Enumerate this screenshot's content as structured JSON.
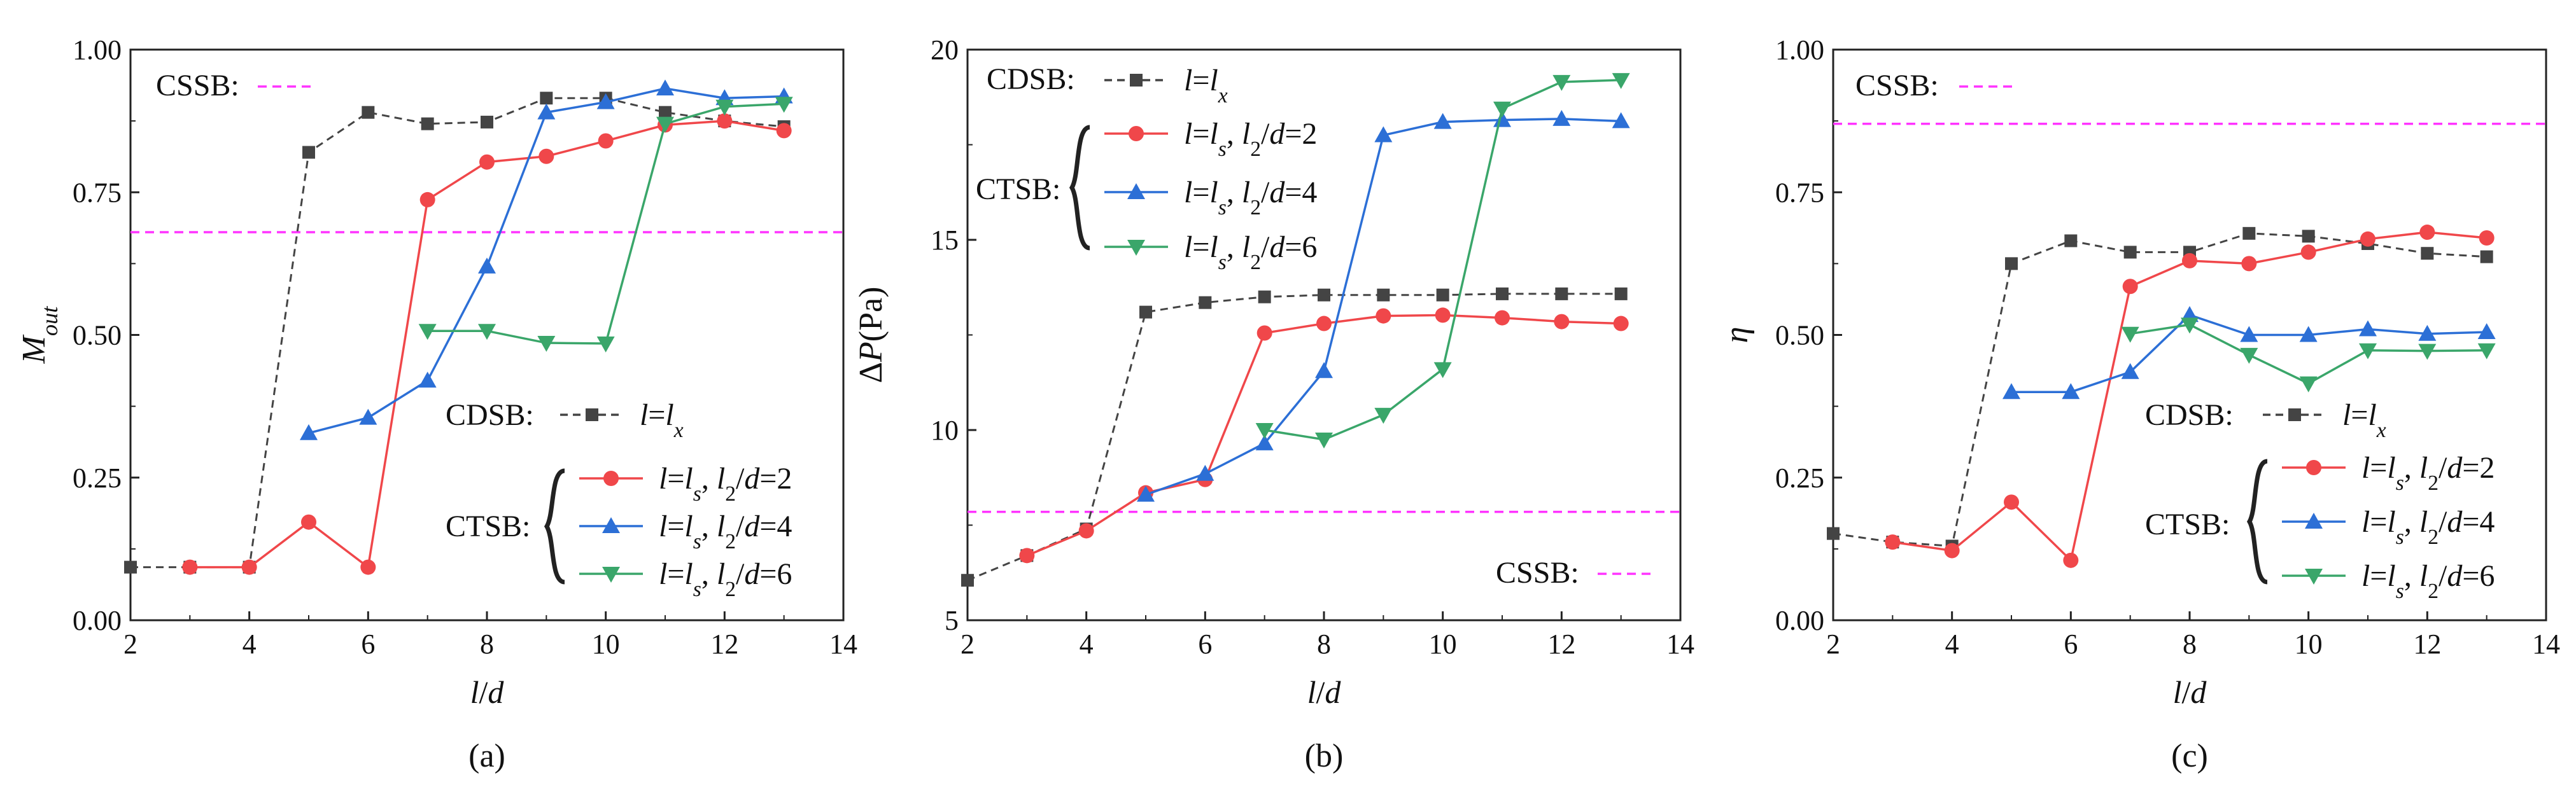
{
  "colors": {
    "cdsb": "#444444",
    "ls_2": "#f0474a",
    "ls_4": "#2c6fd6",
    "ls_6": "#3aa66a",
    "cssb": "#ff33ff",
    "axis": "#222222"
  },
  "chart_data": [
    {
      "type": "line",
      "panel_label": "(a)",
      "xlabel": "l/d",
      "ylabel": "M_out",
      "xlim": [
        2,
        14
      ],
      "ylim": [
        0,
        1
      ],
      "xticks": [
        "2",
        "4",
        "6",
        "8",
        "10",
        "12",
        "14"
      ],
      "yticks": [
        "0.00",
        "0.25",
        "0.50",
        "0.75",
        "1.00"
      ],
      "legend": {
        "cdsb_label": "CDSB:",
        "ctsb_label": "CTSB:",
        "cssb_label": "CSSB:",
        "entries": [
          {
            "id": "cdsb",
            "main": "l",
            "eq": "=",
            "sub_main": "l",
            "sub": "x",
            "tail": ""
          },
          {
            "id": "ls2",
            "main": "l",
            "eq": "=",
            "sub_main": "l",
            "sub": "s",
            "tail": ", l2/d=2"
          },
          {
            "id": "ls4",
            "main": "l",
            "eq": "=",
            "sub_main": "l",
            "sub": "s",
            "tail": ", l2/d=4"
          },
          {
            "id": "ls6",
            "main": "l",
            "eq": "=",
            "sub_main": "l",
            "sub": "s",
            "tail": ", l2/d=6"
          }
        ]
      },
      "reference_lines": [
        {
          "name": "CSSB",
          "y": 0.68
        }
      ],
      "series": [
        {
          "name": "CDSB: l=l_x",
          "color_key": "cdsb",
          "marker": "square",
          "dash": true,
          "x": [
            2,
            3,
            4,
            5,
            6,
            7,
            8,
            9,
            10,
            11,
            12,
            13
          ],
          "values": [
            0.093,
            0.093,
            0.093,
            0.82,
            0.89,
            0.87,
            0.873,
            0.915,
            0.915,
            0.89,
            0.875,
            0.865
          ]
        },
        {
          "name": "CTSB: l=l_s, l2/d=2",
          "color_key": "ls_2",
          "marker": "circle",
          "dash": false,
          "x": [
            3,
            4,
            5,
            6,
            7,
            8,
            9,
            10,
            11,
            12,
            13
          ],
          "values": [
            0.093,
            0.093,
            0.172,
            0.093,
            0.737,
            0.803,
            0.813,
            0.84,
            0.868,
            0.875,
            0.858
          ]
        },
        {
          "name": "CTSB: l=l_s, l2/d=4",
          "color_key": "ls_4",
          "marker": "triangle-up",
          "dash": false,
          "x": [
            5,
            6,
            7,
            8,
            9,
            10,
            11,
            12,
            13
          ],
          "values": [
            0.328,
            0.355,
            0.42,
            0.62,
            0.89,
            0.908,
            0.932,
            0.915,
            0.918
          ]
        },
        {
          "name": "CTSB: l=l_s, l2/d=6",
          "color_key": "ls_6",
          "marker": "triangle-down",
          "dash": false,
          "x": [
            7,
            8,
            9,
            10,
            11,
            12,
            13
          ],
          "values": [
            0.507,
            0.507,
            0.486,
            0.485,
            0.87,
            0.9,
            0.905
          ]
        }
      ]
    },
    {
      "type": "line",
      "panel_label": "(b)",
      "xlabel": "l/d",
      "ylabel": "ΔP(Pa)",
      "xlim": [
        2,
        14
      ],
      "ylim": [
        5,
        20
      ],
      "xticks": [
        "2",
        "4",
        "6",
        "8",
        "10",
        "12",
        "14"
      ],
      "yticks": [
        "5",
        "10",
        "15",
        "20"
      ],
      "legend": {
        "cdsb_label": "CDSB:",
        "ctsb_label": "CTSB:",
        "cssb_label": "CSSB:"
      },
      "reference_lines": [
        {
          "name": "CSSB",
          "y": 7.85
        }
      ],
      "series": [
        {
          "name": "CDSB: l=l_x",
          "color_key": "cdsb",
          "marker": "square",
          "dash": true,
          "x": [
            2,
            3,
            4,
            5,
            6,
            7,
            8,
            9,
            10,
            11,
            12,
            13
          ],
          "values": [
            6.05,
            6.7,
            7.4,
            13.1,
            13.35,
            13.5,
            13.55,
            13.55,
            13.55,
            13.58,
            13.58,
            13.58
          ]
        },
        {
          "name": "CTSB: l=l_s, l2/d=2",
          "color_key": "ls_2",
          "marker": "circle",
          "dash": false,
          "x": [
            3,
            4,
            5,
            6,
            7,
            8,
            9,
            10,
            11,
            12,
            13
          ],
          "values": [
            6.7,
            7.35,
            8.35,
            8.7,
            12.55,
            12.8,
            13.0,
            13.02,
            12.95,
            12.85,
            12.8
          ]
        },
        {
          "name": "CTSB: l=l_s, l2/d=4",
          "color_key": "ls_4",
          "marker": "triangle-up",
          "dash": false,
          "x": [
            5,
            6,
            7,
            8,
            9,
            10,
            11,
            12,
            13
          ],
          "values": [
            8.3,
            8.85,
            9.65,
            11.55,
            17.75,
            18.1,
            18.15,
            18.18,
            18.12
          ]
        },
        {
          "name": "CTSB: l=l_s, l2/d=6",
          "color_key": "ls_6",
          "marker": "triangle-down",
          "dash": false,
          "x": [
            7,
            8,
            9,
            10,
            11,
            12,
            13
          ],
          "values": [
            10.0,
            9.75,
            10.4,
            11.6,
            18.45,
            19.15,
            19.2
          ]
        }
      ]
    },
    {
      "type": "line",
      "panel_label": "(c)",
      "xlabel": "l/d",
      "ylabel": "η",
      "xlim": [
        2,
        14
      ],
      "ylim": [
        0,
        1
      ],
      "xticks": [
        "2",
        "4",
        "6",
        "8",
        "10",
        "12",
        "14"
      ],
      "yticks": [
        "0.00",
        "0.25",
        "0.50",
        "0.75",
        "1.00"
      ],
      "legend": {
        "cdsb_label": "CDSB:",
        "ctsb_label": "CTSB:",
        "cssb_label": "CSSB:"
      },
      "reference_lines": [
        {
          "name": "CSSB",
          "y": 0.87
        }
      ],
      "series": [
        {
          "name": "CDSB: l=l_x",
          "color_key": "cdsb",
          "marker": "square",
          "dash": true,
          "x": [
            2,
            3,
            4,
            5,
            6,
            7,
            8,
            9,
            10,
            11,
            12,
            13
          ],
          "values": [
            0.152,
            0.137,
            0.13,
            0.625,
            0.665,
            0.645,
            0.645,
            0.678,
            0.673,
            0.66,
            0.643,
            0.637
          ]
        },
        {
          "name": "CTSB: l=l_s, l2/d=2",
          "color_key": "ls_2",
          "marker": "circle",
          "dash": false,
          "x": [
            3,
            4,
            5,
            6,
            7,
            8,
            9,
            10,
            11,
            12,
            13
          ],
          "values": [
            0.137,
            0.122,
            0.207,
            0.105,
            0.585,
            0.63,
            0.625,
            0.645,
            0.668,
            0.68,
            0.67
          ]
        },
        {
          "name": "CTSB: l=l_s, l2/d=4",
          "color_key": "ls_4",
          "marker": "triangle-up",
          "dash": false,
          "x": [
            5,
            6,
            7,
            8,
            9,
            10,
            11,
            12,
            13
          ],
          "values": [
            0.4,
            0.4,
            0.435,
            0.535,
            0.5,
            0.5,
            0.51,
            0.502,
            0.505
          ]
        },
        {
          "name": "CTSB: l=l_s, l2/d=6",
          "color_key": "ls_6",
          "marker": "triangle-down",
          "dash": false,
          "x": [
            7,
            8,
            9,
            10,
            11,
            12,
            13
          ],
          "values": [
            0.502,
            0.518,
            0.465,
            0.415,
            0.473,
            0.472,
            0.473
          ]
        }
      ]
    }
  ]
}
